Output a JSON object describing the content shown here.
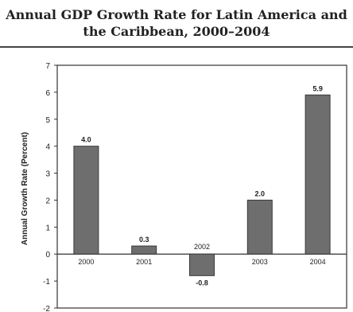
{
  "chart_data": {
    "type": "bar",
    "title_lines": [
      "Annual GDP Growth Rate for Latin America and",
      "the Caribbean, 2000–2004"
    ],
    "xlabel": "",
    "ylabel": "Annual Growth Rate (Percent)",
    "categories": [
      "2000",
      "2001",
      "2002",
      "2003",
      "2004"
    ],
    "values": [
      4.0,
      0.3,
      -0.8,
      2.0,
      5.9
    ],
    "data_labels": [
      "4.0",
      "0.3",
      "-0.8",
      "2.0",
      "5.9"
    ],
    "ylim": [
      -2,
      7
    ],
    "yticks": [
      "7",
      "6",
      "5",
      "4",
      "3",
      "2",
      "1",
      "0",
      "-1",
      "-2"
    ],
    "ytick_values": [
      7,
      6,
      5,
      4,
      3,
      2,
      1,
      0,
      -1,
      -2
    ],
    "grid": false,
    "bar_color": "#6e6e6e",
    "frame_color": "#333333"
  }
}
